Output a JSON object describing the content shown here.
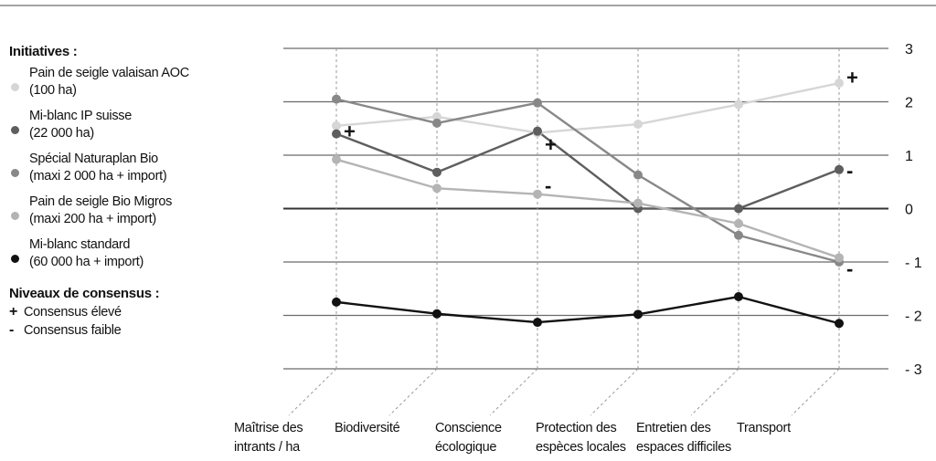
{
  "legend": {
    "title": "Initiatives :",
    "items": [
      {
        "label": "Pain de seigle valaisan AOC\n(100 ha)",
        "color": "#d6d6d6"
      },
      {
        "label": "Mi-blanc IP suisse\n(22 000 ha)",
        "color": "#5e5e5e"
      },
      {
        "label": "Spécial Naturaplan Bio\n(maxi 2 000 ha + import)",
        "color": "#888888"
      },
      {
        "label": "Pain de seigle Bio Migros\n(maxi 200 ha + import)",
        "color": "#b4b4b4"
      },
      {
        "label": "Mi-blanc standard\n(60 000 ha + import)",
        "color": "#111111"
      }
    ]
  },
  "consensus": {
    "title": "Niveaux de consensus :",
    "items": [
      {
        "symbol": "+",
        "label": "Consensus élevé"
      },
      {
        "symbol": "-",
        "label": "Consensus faible"
      }
    ]
  },
  "chart_data": {
    "type": "line",
    "categories": [
      [
        "Maîtrise des",
        "intrants / ha"
      ],
      [
        "Biodiversité"
      ],
      [
        "Conscience",
        "écologique"
      ],
      [
        "Protection des",
        "espèces locales"
      ],
      [
        "Entretien des",
        "espaces difficiles"
      ],
      [
        "Transport"
      ]
    ],
    "ylim": [
      -3,
      3
    ],
    "yticks": [
      3,
      2,
      1,
      0,
      -1,
      -2,
      -3
    ],
    "ytick_labels": [
      "3",
      "2",
      "1",
      "0",
      "- 1",
      "- 2",
      "- 3"
    ],
    "grid": true,
    "series": [
      {
        "name": "Pain de seigle valaisan AOC",
        "color": "#d6d6d6",
        "values": [
          1.55,
          1.72,
          1.42,
          1.58,
          1.95,
          2.35
        ]
      },
      {
        "name": "Mi-blanc IP suisse",
        "color": "#5e5e5e",
        "values": [
          1.4,
          0.68,
          1.45,
          0.0,
          0.0,
          0.73
        ]
      },
      {
        "name": "Spécial Naturaplan Bio",
        "color": "#888888",
        "values": [
          2.05,
          1.6,
          1.98,
          0.63,
          -0.5,
          -1.0
        ]
      },
      {
        "name": "Pain de seigle Bio Migros",
        "color": "#b4b4b4",
        "values": [
          0.92,
          0.38,
          0.27,
          0.1,
          -0.28,
          -0.92
        ]
      },
      {
        "name": "Mi-blanc standard",
        "color": "#111111",
        "values": [
          -1.75,
          -1.97,
          -2.13,
          -1.98,
          -1.65,
          -2.15
        ]
      }
    ],
    "annotations": [
      {
        "text": "+",
        "category": 0,
        "y": 1.42
      },
      {
        "text": "+",
        "category": 2,
        "y": 1.17
      },
      {
        "text": "-",
        "category": 2,
        "y": 0.4
      },
      {
        "text": "+",
        "category": 5,
        "y": 2.43
      },
      {
        "text": "-",
        "category": 5,
        "y": 0.68
      },
      {
        "text": "-",
        "category": 5,
        "y": -1.15
      }
    ]
  }
}
